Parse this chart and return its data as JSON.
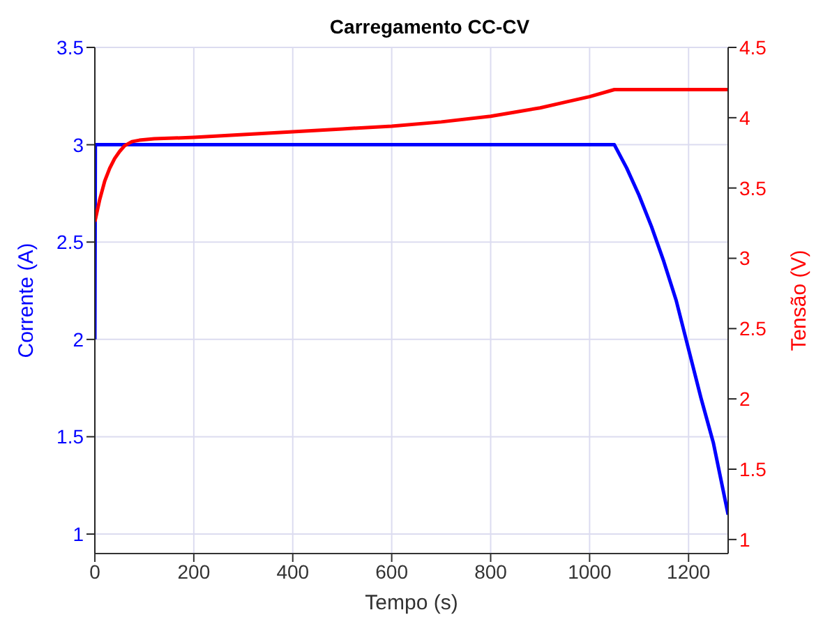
{
  "chart_data": {
    "type": "line",
    "title": "Carregamento CC-CV",
    "xlabel": "Tempo (s)",
    "ylabel": "Corrente (A)",
    "y2label": "Tensão (V)",
    "xlim": [
      0,
      1280
    ],
    "xticks": [
      0,
      200,
      400,
      600,
      800,
      1000,
      1200
    ],
    "ylim": [
      0.9,
      3.5
    ],
    "yticks": [
      1,
      1.5,
      2,
      2.5,
      3,
      3.5
    ],
    "y2lim": [
      0.9,
      4.5
    ],
    "y2ticks": [
      1,
      1.5,
      2,
      2.5,
      3,
      3.5,
      4,
      4.5
    ],
    "grid": true,
    "legend": false,
    "marker": "none",
    "line_style": "solid",
    "series": [
      {
        "color": "#0000ff",
        "axis": "y",
        "x": [
          0,
          1,
          1050,
          1075,
          1100,
          1125,
          1150,
          1175,
          1200,
          1225,
          1250,
          1280
        ],
        "values": [
          2,
          3,
          3,
          2.88,
          2.74,
          2.58,
          2.4,
          2.2,
          1.95,
          1.7,
          1.47,
          1.1
        ]
      },
      {
        "color": "#ff0000",
        "axis": "y2",
        "x": [
          0,
          10,
          20,
          30,
          40,
          50,
          60,
          75,
          90,
          120,
          200,
          300,
          400,
          500,
          600,
          700,
          800,
          850,
          900,
          950,
          1000,
          1050,
          1280
        ],
        "values": [
          3.26,
          3.42,
          3.55,
          3.64,
          3.71,
          3.76,
          3.8,
          3.83,
          3.84,
          3.85,
          3.86,
          3.88,
          3.9,
          3.92,
          3.94,
          3.97,
          4.01,
          4.04,
          4.07,
          4.11,
          4.15,
          4.2,
          4.2
        ]
      }
    ]
  }
}
